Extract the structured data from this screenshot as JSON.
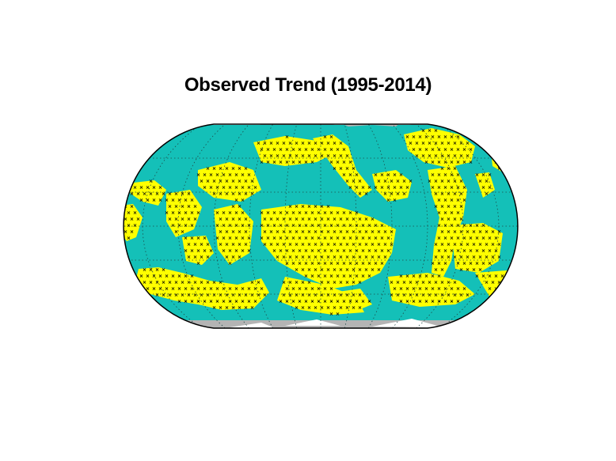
{
  "title": "Observed Trend (1995-2014)",
  "colors": {
    "background": "#ffffff",
    "ocean_fill": "#14c0b8",
    "trend_region": "#ffff00",
    "land_mask": "#b4b4b4",
    "ice_mask": "#ffffff",
    "stipple_mark": "#000000",
    "graticule": "#1e4a48",
    "frame": "#000000"
  },
  "map": {
    "projection": "equal-earth-like",
    "graticule": "dotted",
    "significance_marker": "x-icon"
  }
}
